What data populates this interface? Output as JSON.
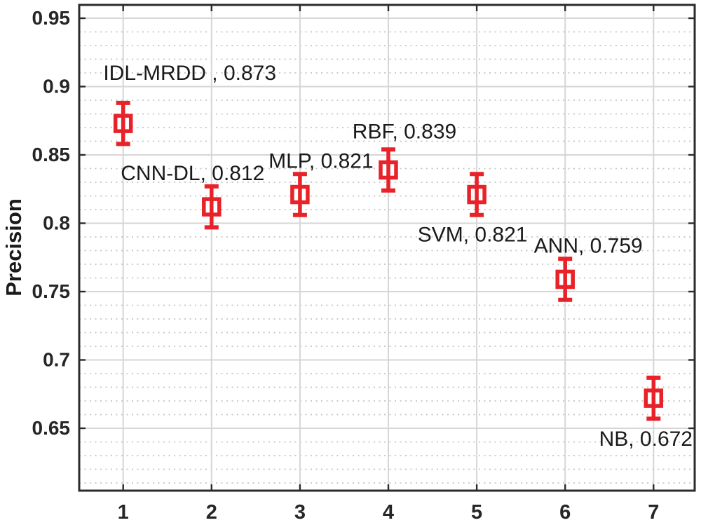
{
  "chart_data": {
    "type": "scatter",
    "subtype": "errorbar",
    "title": "",
    "xlabel": "",
    "ylabel": "Precision",
    "xlim": [
      0.5,
      7.5
    ],
    "ylim": [
      0.604,
      0.96
    ],
    "grid": {
      "x_major": true,
      "y_major": true,
      "y_minor": true,
      "y_minor_style": "dotted"
    },
    "legend": "none",
    "xticks": {
      "values": [
        1,
        2,
        3,
        4,
        5,
        6,
        7
      ],
      "labels": [
        "1",
        "2",
        "3",
        "4",
        "5",
        "6",
        "7"
      ]
    },
    "yticks": {
      "values": [
        0.65,
        0.7,
        0.75,
        0.8,
        0.85,
        0.9,
        0.95
      ],
      "labels": [
        "0.65",
        "0.7",
        "0.75",
        "0.8",
        "0.85",
        "0.9",
        "0.95"
      ]
    },
    "y_minor_step": 0.01,
    "marker": {
      "shape": "open-square",
      "color": "#e82228"
    },
    "points": [
      {
        "x": 1,
        "method": "IDL-MRDD",
        "value": 0.873,
        "error": 0.015,
        "annotation": "IDL-MRDD , 0.873",
        "ann_dx": 95,
        "ann_dy": -72
      },
      {
        "x": 2,
        "method": "CNN-DL",
        "value": 0.812,
        "error": 0.015,
        "annotation": "CNN-DL, 0.812",
        "ann_dx": -27,
        "ann_dy": -48
      },
      {
        "x": 3,
        "method": "MLP",
        "value": 0.821,
        "error": 0.015,
        "annotation": "MLP, 0.821",
        "ann_dx": 30,
        "ann_dy": -48
      },
      {
        "x": 4,
        "method": "RBF",
        "value": 0.839,
        "error": 0.015,
        "annotation": "RBF, 0.839",
        "ann_dx": 23,
        "ann_dy": -55
      },
      {
        "x": 5,
        "method": "SVM",
        "value": 0.821,
        "error": 0.015,
        "annotation": "SVM, 0.821",
        "ann_dx": -6,
        "ann_dy": 57
      },
      {
        "x": 6,
        "method": "ANN",
        "value": 0.759,
        "error": 0.015,
        "annotation": "ANN, 0.759",
        "ann_dx": 33,
        "ann_dy": -48
      },
      {
        "x": 7,
        "method": "NB",
        "value": 0.672,
        "error": 0.015,
        "annotation": "NB, 0.672",
        "ann_dx": -11,
        "ann_dy": 58
      }
    ],
    "colors": {
      "marker": "#e82228",
      "axis": "#2b2b2b",
      "grid_major": "#d6d6d6",
      "grid_minor": "#c4c4c4",
      "text": "#1a1a1a",
      "tick_label": "#262626",
      "background": "#ffffff"
    }
  }
}
